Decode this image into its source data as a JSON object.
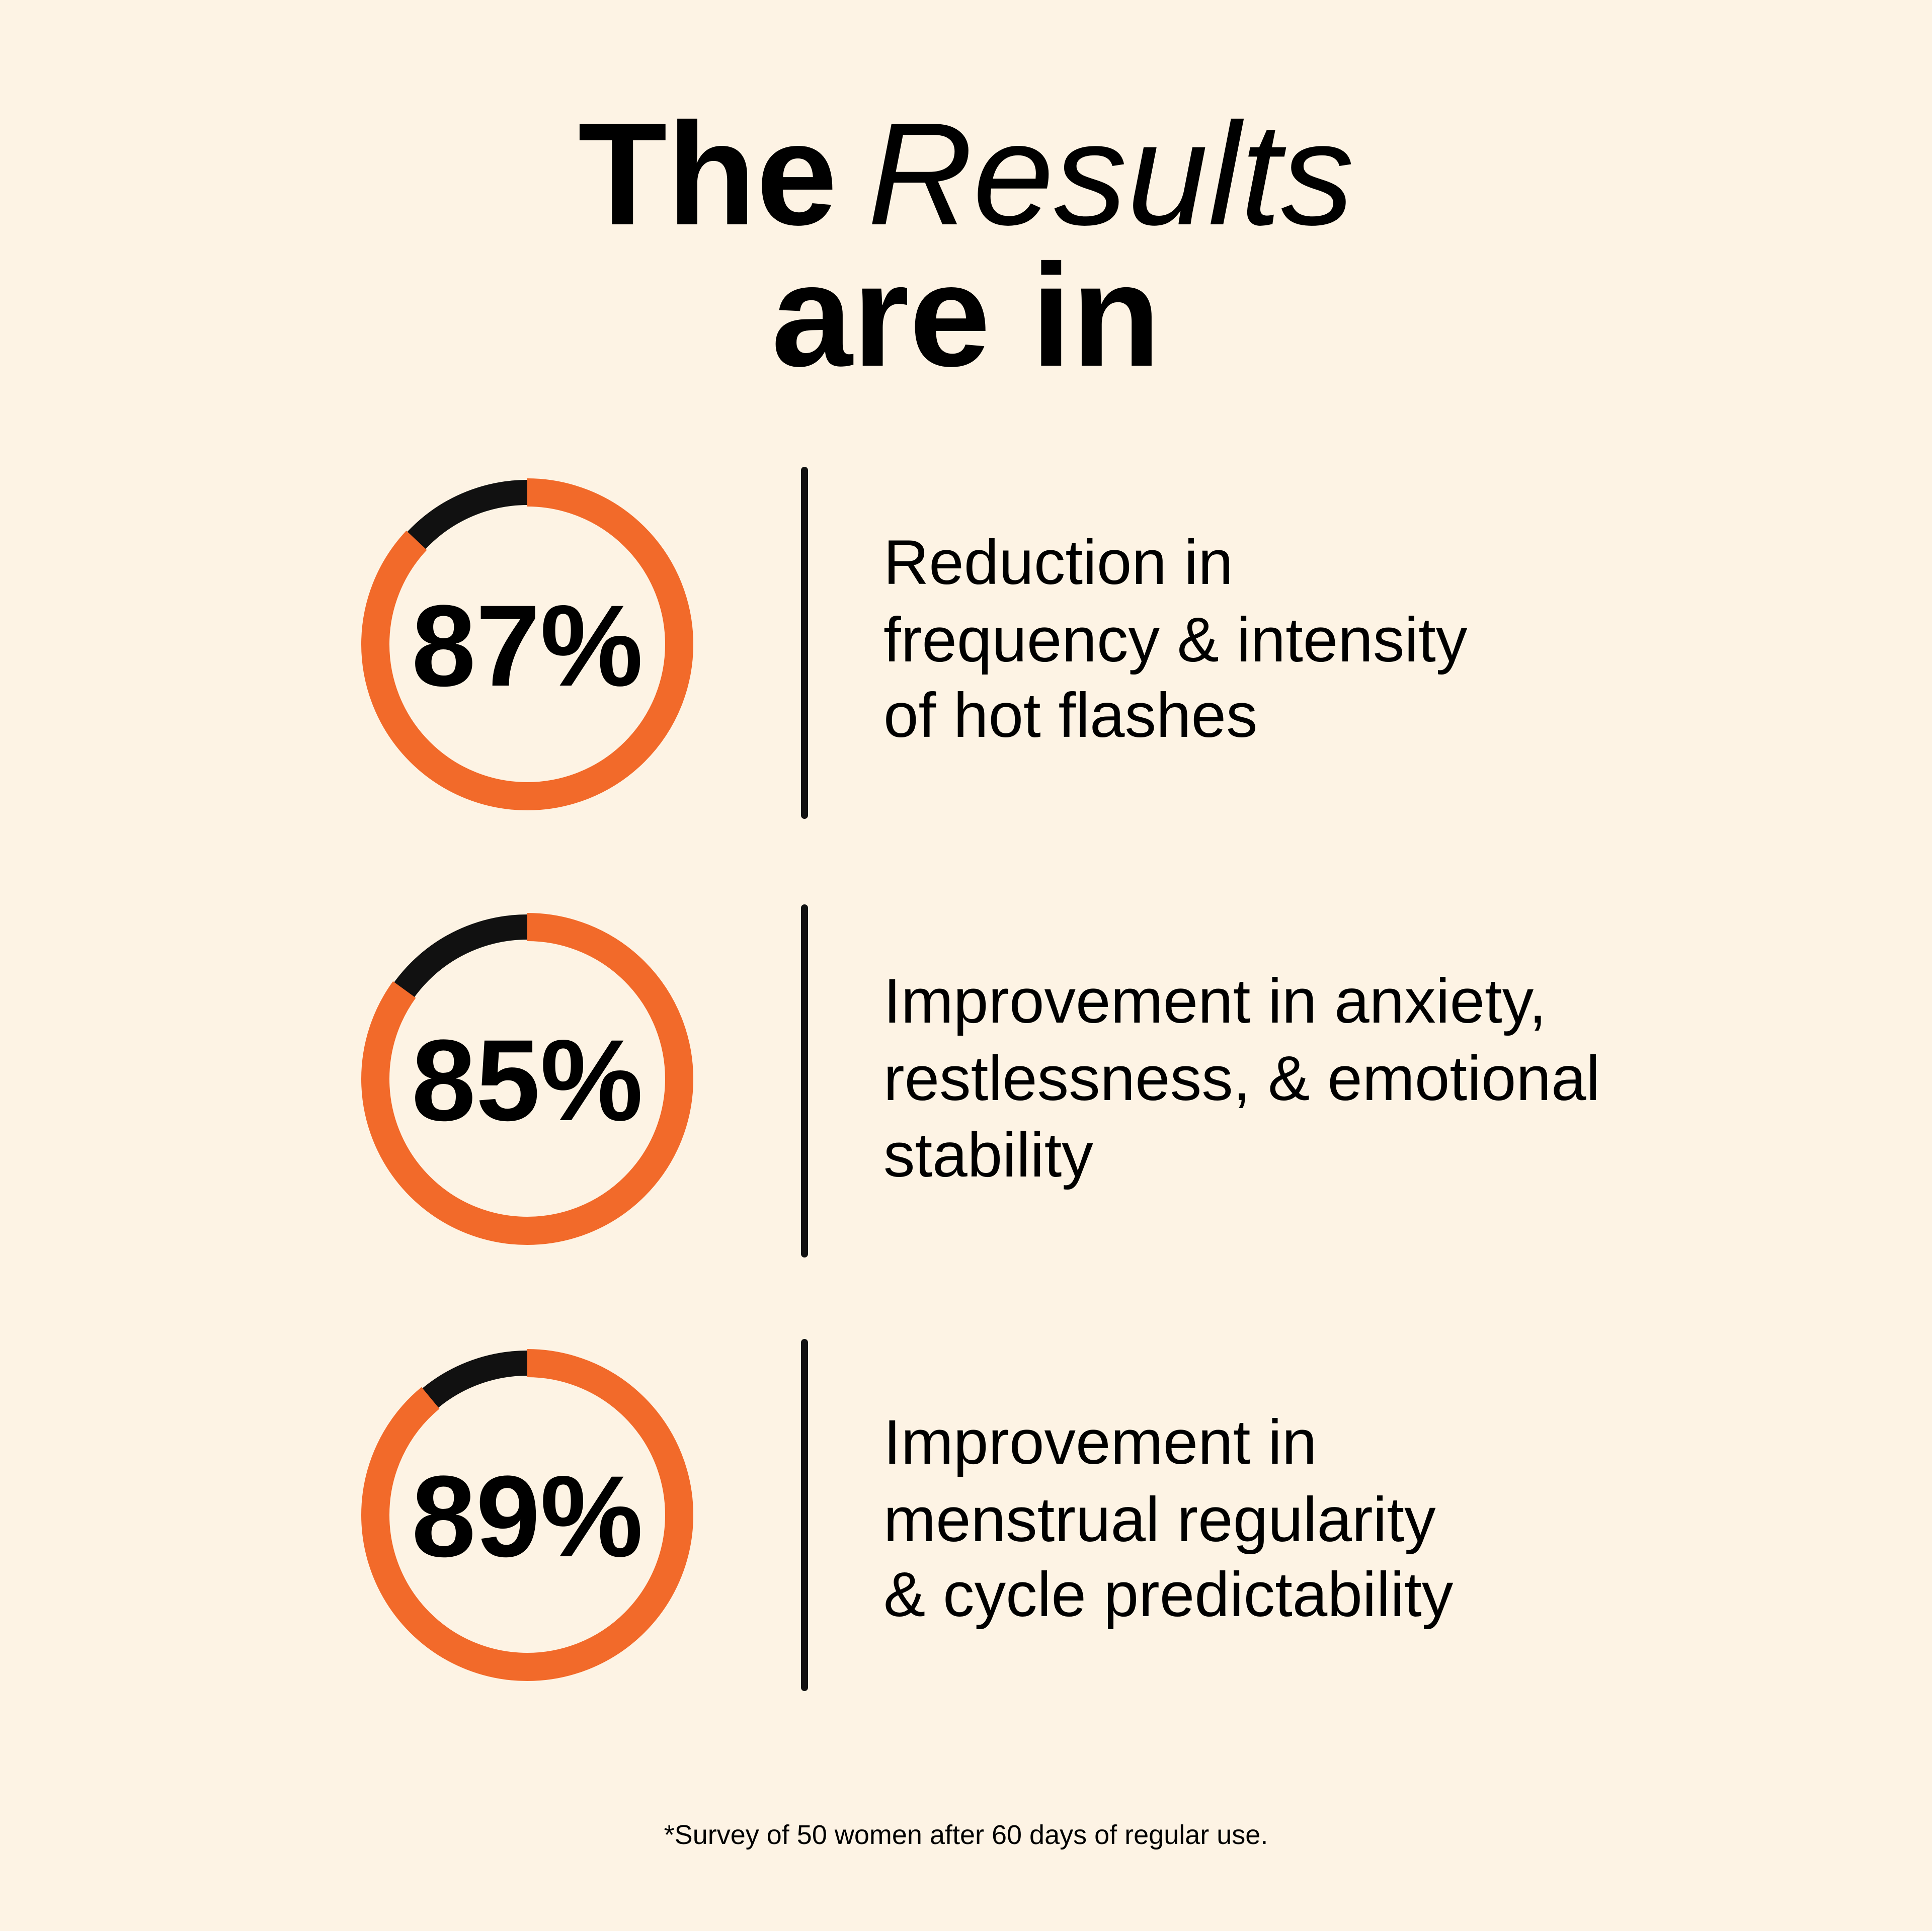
{
  "title": [
    "The",
    "Results",
    "are in"
  ],
  "footnote": "*Survey of 50 women after 60 days of regular use.",
  "chart_data": [
    {
      "type": "donut",
      "values": [
        87
      ],
      "value_labels": [
        "87%"
      ],
      "color": "#f26a2a",
      "rest_color": "#111111",
      "description": [
        "Reduction in",
        "frequency & intensity",
        "of hot flashes"
      ]
    },
    {
      "type": "donut",
      "values": [
        85
      ],
      "value_labels": [
        "85%"
      ],
      "color": "#f26a2a",
      "rest_color": "#111111",
      "description": [
        "Improvement in anxiety,",
        "restlessness, & emotional",
        "stability"
      ]
    },
    {
      "type": "donut",
      "values": [
        89
      ],
      "value_labels": [
        "89%"
      ],
      "color": "#f26a2a",
      "rest_color": "#111111",
      "description": [
        "Improvement in",
        "menstrual regularity",
        "& cycle predictability"
      ]
    }
  ]
}
